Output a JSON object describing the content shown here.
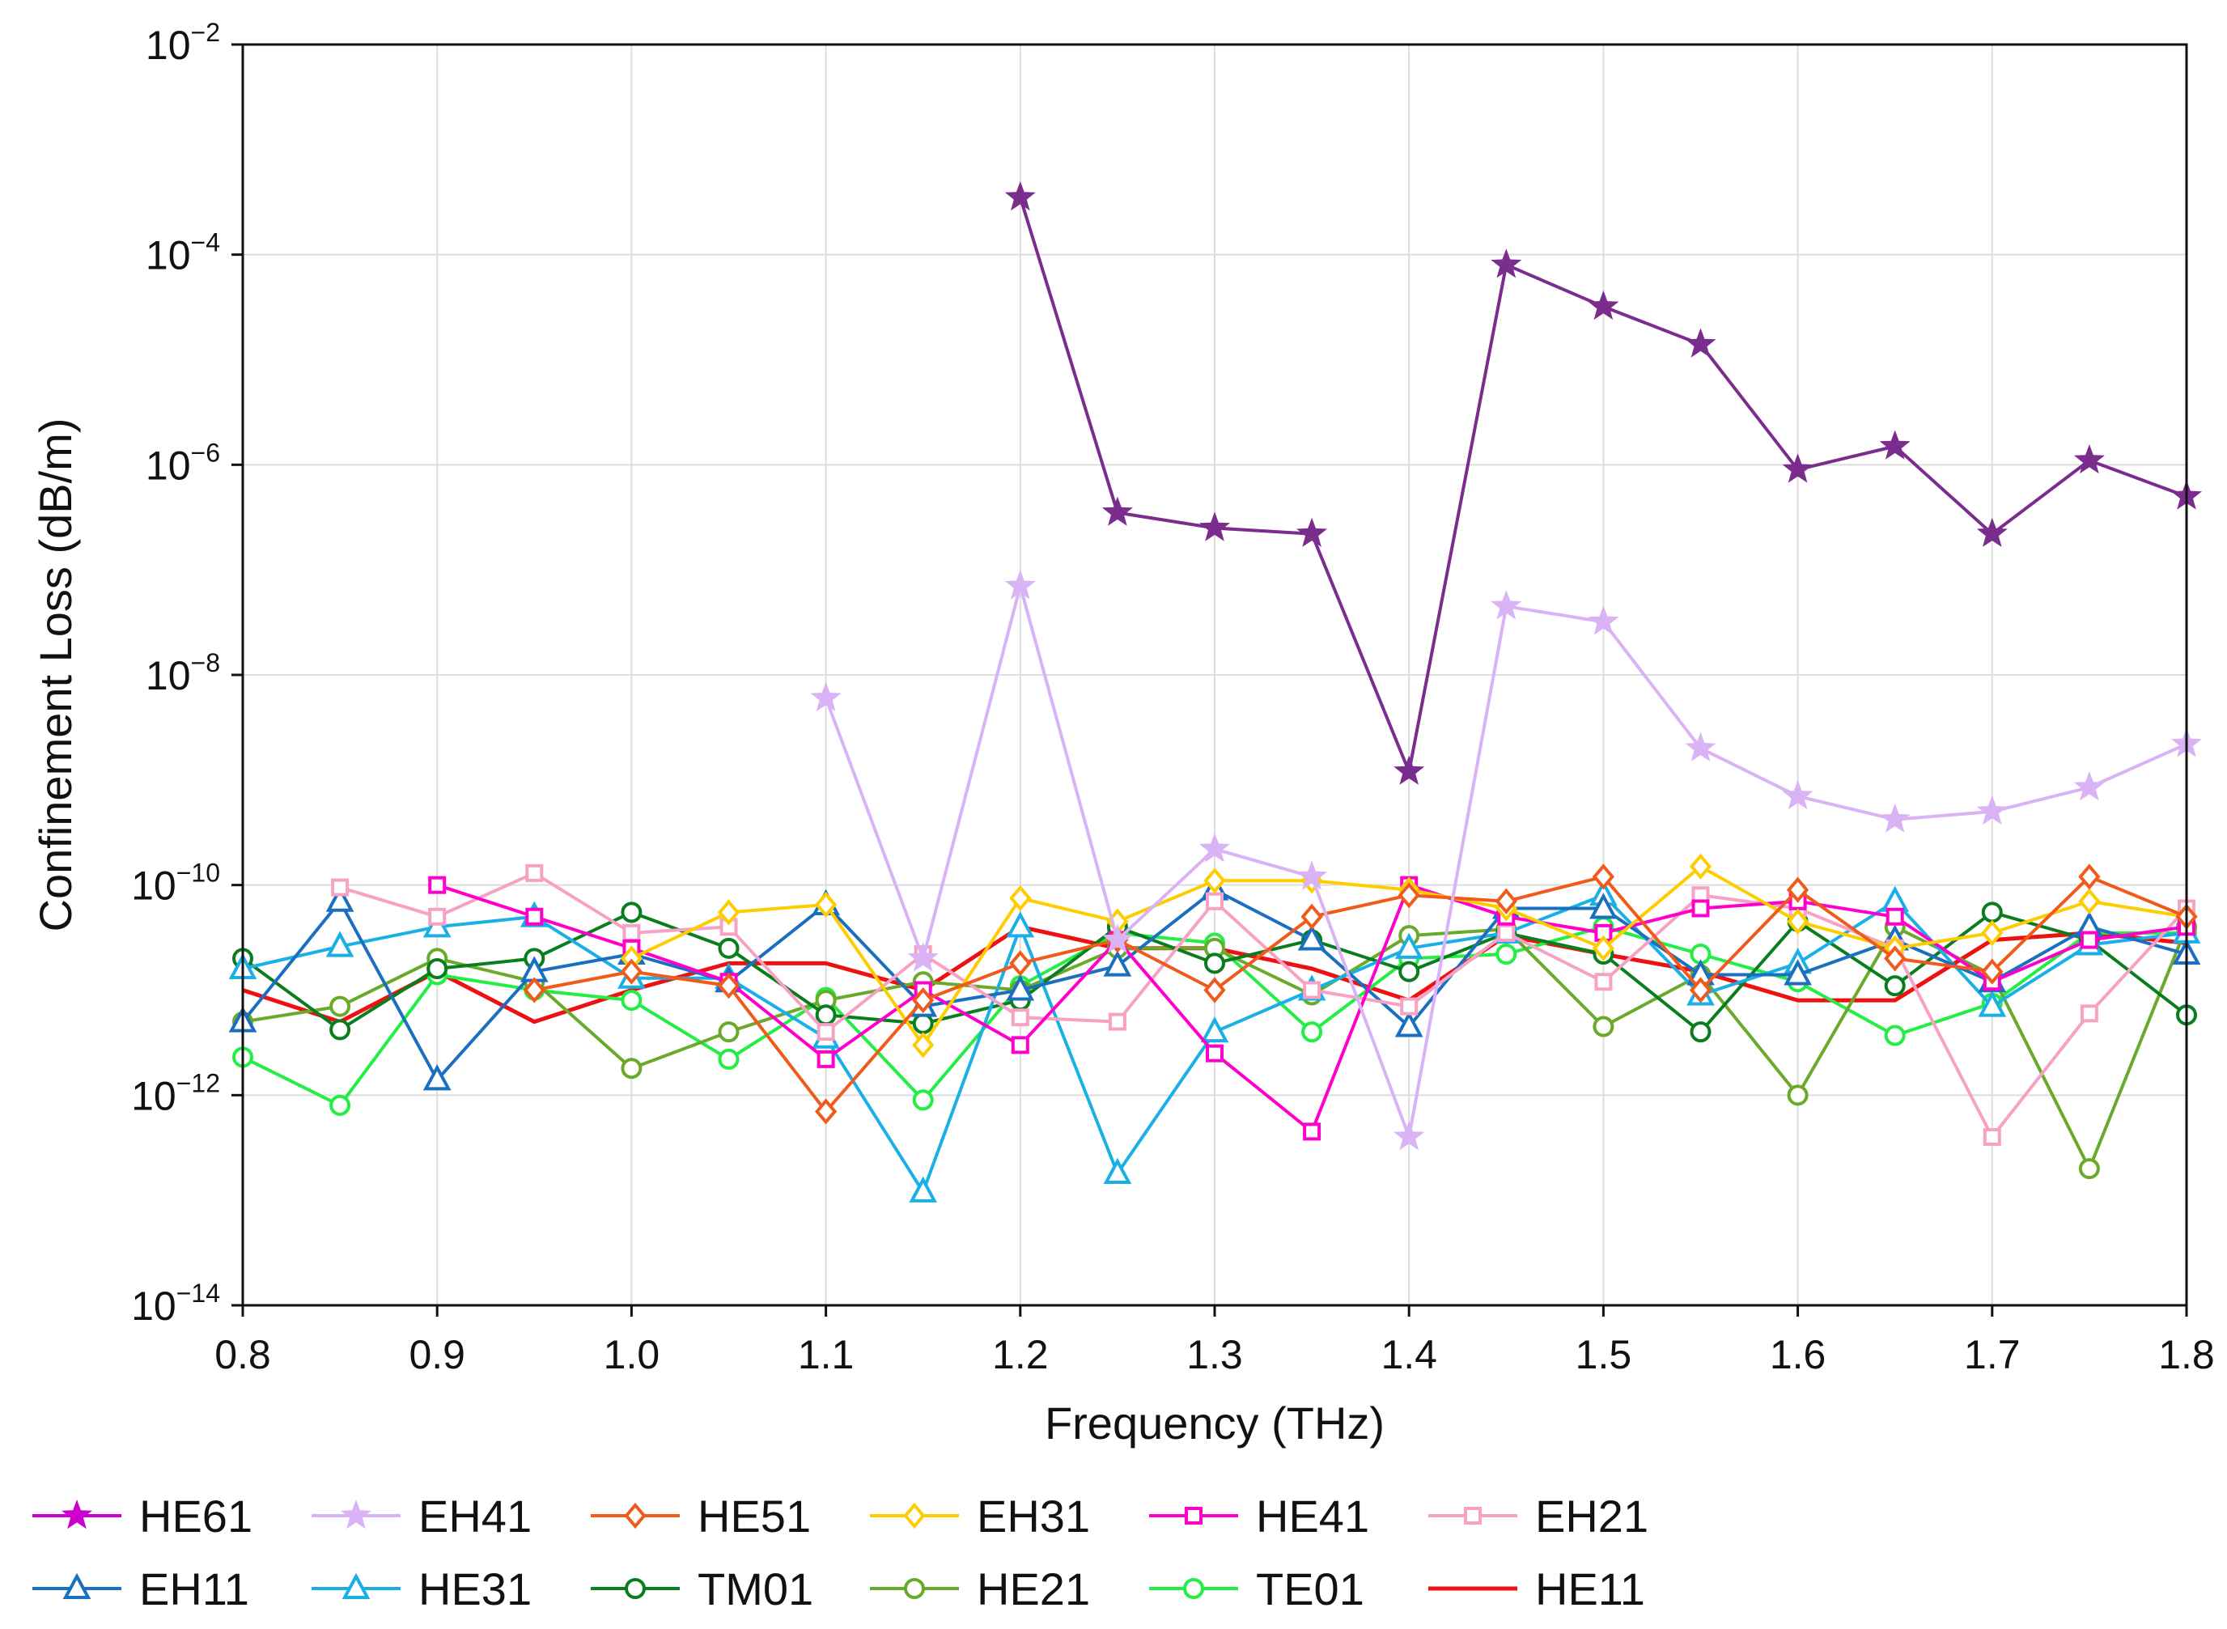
{
  "chart_data": {
    "type": "line",
    "title": "",
    "xlabel": "Frequency (THz)",
    "ylabel": "Confinement Loss (dB/m)",
    "xlim": [
      0.8,
      1.8
    ],
    "ylim": [
      1e-14,
      0.01
    ],
    "yscale": "log",
    "grid": true,
    "legend_position": "bottom",
    "x_ticks": [
      "0.8",
      "0.9",
      "1.0",
      "1.1",
      "1.2",
      "1.3",
      "1.4",
      "1.5",
      "1.6",
      "1.7",
      "1.8"
    ],
    "y_ticks": [
      {
        "base": "10",
        "exp": "−14"
      },
      {
        "base": "10",
        "exp": "−12"
      },
      {
        "base": "10",
        "exp": "−10"
      },
      {
        "base": "10",
        "exp": "−8"
      },
      {
        "base": "10",
        "exp": "−6"
      },
      {
        "base": "10",
        "exp": "−4"
      },
      {
        "base": "10",
        "exp": "−2"
      }
    ],
    "series": [
      {
        "name": "HE61",
        "color": "#7b2d8e",
        "legend_color": "#cc00cc",
        "marker": "star",
        "x": [
          1.2,
          1.25,
          1.3,
          1.35,
          1.4,
          1.45,
          1.5,
          1.55,
          1.6,
          1.65,
          1.7,
          1.75,
          1.8
        ],
        "y": [
          0.00035,
          3.5e-07,
          2.5e-07,
          2.2e-07,
          1.2e-09,
          8e-05,
          3.2e-05,
          1.4e-05,
          9e-07,
          1.5e-06,
          2.2e-07,
          1.1e-06,
          5e-07
        ]
      },
      {
        "name": "EH41",
        "color": "#d9b3f5",
        "marker": "star",
        "x": [
          1.1,
          1.15,
          1.2,
          1.25,
          1.3,
          1.35,
          1.4,
          1.45,
          1.5,
          1.55,
          1.6,
          1.65,
          1.7,
          1.75,
          1.8
        ],
        "y": [
          6e-09,
          2e-11,
          7e-08,
          3e-11,
          2.2e-10,
          1.2e-10,
          4e-13,
          4.5e-08,
          3.2e-08,
          2e-09,
          7e-10,
          4.2e-10,
          5e-10,
          8.5e-10,
          2.2e-09
        ]
      },
      {
        "name": "HE51",
        "color": "#f05a1a",
        "marker": "diamond",
        "x": [
          0.95,
          1.0,
          1.05,
          1.1,
          1.15,
          1.2,
          1.25,
          1.3,
          1.35,
          1.4,
          1.45,
          1.5,
          1.55,
          1.6,
          1.65,
          1.7,
          1.75,
          1.8
        ],
        "y": [
          1e-11,
          1.5e-11,
          1.1e-11,
          7e-13,
          8e-12,
          1.8e-11,
          3e-11,
          1e-11,
          5e-11,
          8e-11,
          7e-11,
          1.2e-10,
          1e-11,
          9e-11,
          2e-11,
          1.5e-11,
          1.2e-10,
          5e-11
        ]
      },
      {
        "name": "EH31",
        "color": "#ffcc00",
        "marker": "diamond",
        "x": [
          1.0,
          1.05,
          1.1,
          1.15,
          1.2,
          1.25,
          1.3,
          1.35,
          1.4,
          1.45,
          1.5,
          1.55,
          1.6,
          1.65,
          1.7,
          1.75,
          1.8
        ],
        "y": [
          2e-11,
          5.5e-11,
          6.5e-11,
          3e-12,
          7.5e-11,
          4.5e-11,
          1.1e-10,
          1.1e-10,
          9e-11,
          6e-11,
          2.5e-11,
          1.5e-10,
          4.5e-11,
          2.5e-11,
          3.5e-11,
          7e-11,
          5e-11
        ]
      },
      {
        "name": "HE41",
        "color": "#ff00cc",
        "marker": "square",
        "x": [
          0.9,
          0.95,
          1.0,
          1.05,
          1.1,
          1.15,
          1.2,
          1.25,
          1.3,
          1.35,
          1.4,
          1.45,
          1.5,
          1.55,
          1.6,
          1.65,
          1.7,
          1.75,
          1.8
        ],
        "y": [
          1e-10,
          5e-11,
          2.5e-11,
          1.2e-11,
          2.2e-12,
          1e-11,
          3e-12,
          3e-11,
          2.5e-12,
          4.5e-13,
          1e-10,
          5e-11,
          3.5e-11,
          6e-11,
          7e-11,
          5e-11,
          1.2e-11,
          3e-11,
          4e-11
        ]
      },
      {
        "name": "EH21",
        "color": "#f7a1c4",
        "marker": "square",
        "x": [
          0.85,
          0.9,
          0.95,
          1.0,
          1.05,
          1.1,
          1.15,
          1.2,
          1.25,
          1.3,
          1.35,
          1.4,
          1.45,
          1.5,
          1.55,
          1.6,
          1.65,
          1.7,
          1.75,
          1.8
        ],
        "y": [
          9.5e-11,
          5e-11,
          1.3e-10,
          3.5e-11,
          4e-11,
          4e-12,
          2.2e-11,
          5.5e-12,
          5e-12,
          7e-11,
          1e-11,
          7e-12,
          3.5e-11,
          1.2e-11,
          8e-11,
          6e-11,
          2.5e-11,
          4e-13,
          6e-12,
          6e-11
        ]
      },
      {
        "name": "EH11",
        "color": "#1a6fbf",
        "marker": "triangle",
        "x": [
          0.8,
          0.85,
          0.9,
          0.95,
          1.0,
          1.05,
          1.1,
          1.15,
          1.2,
          1.25,
          1.3,
          1.35,
          1.4,
          1.45,
          1.5,
          1.55,
          1.6,
          1.65,
          1.7,
          1.75,
          1.8
        ],
        "y": [
          5e-12,
          7e-11,
          1.4e-12,
          1.5e-11,
          2.2e-11,
          1.2e-11,
          6.5e-11,
          7e-12,
          1e-11,
          1.7e-11,
          9e-11,
          3e-11,
          4.5e-12,
          6e-11,
          6e-11,
          1.4e-11,
          1.4e-11,
          3e-11,
          1.2e-11,
          4e-11,
          2.2e-11
        ]
      },
      {
        "name": "HE31",
        "color": "#1ab0e6",
        "marker": "triangle",
        "x": [
          0.8,
          0.85,
          0.9,
          0.95,
          1.0,
          1.05,
          1.1,
          1.15,
          1.2,
          1.25,
          1.3,
          1.35,
          1.4,
          1.45,
          1.5,
          1.55,
          1.6,
          1.65,
          1.7,
          1.75,
          1.8
        ],
        "y": [
          1.6e-11,
          2.6e-11,
          4e-11,
          5e-11,
          1.3e-11,
          1.3e-11,
          3.5e-12,
          1.2e-13,
          4e-11,
          1.8e-13,
          4e-12,
          1e-11,
          2.5e-11,
          3.5e-11,
          8e-11,
          9e-12,
          1.8e-11,
          7e-11,
          7e-12,
          2.7e-11,
          3.5e-11
        ]
      },
      {
        "name": "TM01",
        "color": "#0a7d1e",
        "marker": "circle",
        "x": [
          0.8,
          0.85,
          0.9,
          0.95,
          1.0,
          1.05,
          1.1,
          1.15,
          1.2,
          1.25,
          1.3,
          1.35,
          1.4,
          1.45,
          1.5,
          1.55,
          1.6,
          1.65,
          1.7,
          1.75,
          1.8
        ],
        "y": [
          2e-11,
          4.2e-12,
          1.6e-11,
          2e-11,
          5.5e-11,
          2.5e-11,
          5.8e-12,
          4.8e-12,
          8e-12,
          4e-11,
          1.8e-11,
          3e-11,
          1.5e-11,
          3.5e-11,
          2.2e-11,
          4e-12,
          4.5e-11,
          1.1e-11,
          5.5e-11,
          3e-11,
          5.8e-12
        ]
      },
      {
        "name": "HE21",
        "color": "#6aaa2a",
        "marker": "circle",
        "x": [
          0.8,
          0.85,
          0.9,
          0.95,
          1.0,
          1.05,
          1.1,
          1.15,
          1.2,
          1.25,
          1.3,
          1.35,
          1.4,
          1.45,
          1.5,
          1.55,
          1.6,
          1.65,
          1.7,
          1.75,
          1.8
        ],
        "y": [
          5e-12,
          7e-12,
          2e-11,
          1.2e-11,
          1.8e-12,
          4e-12,
          8e-12,
          1.2e-11,
          1e-11,
          2.5e-11,
          2.5e-11,
          9e-12,
          3.3e-11,
          3.8e-11,
          4.5e-12,
          1.4e-11,
          1e-12,
          4e-11,
          1.4e-11,
          2e-13,
          4e-11
        ]
      },
      {
        "name": "TE01",
        "color": "#22ee44",
        "marker": "circle",
        "x": [
          0.8,
          0.85,
          0.9,
          0.95,
          1.0,
          1.05,
          1.1,
          1.15,
          1.2,
          1.25,
          1.3,
          1.35,
          1.4,
          1.45,
          1.5,
          1.55,
          1.6,
          1.65,
          1.7,
          1.75,
          1.8
        ],
        "y": [
          2.3e-12,
          8e-13,
          1.4e-11,
          1e-11,
          8e-12,
          2.2e-12,
          8.5e-12,
          9e-13,
          1.1e-11,
          3.5e-11,
          2.8e-11,
          4e-12,
          2e-11,
          2.2e-11,
          4e-11,
          2.2e-11,
          1.2e-11,
          3.7e-12,
          7.5e-12,
          3.5e-11,
          3.5e-11
        ]
      },
      {
        "name": "HE11",
        "color": "#ee1111",
        "marker": "none",
        "x": [
          0.8,
          0.85,
          0.9,
          0.95,
          1.0,
          1.05,
          1.1,
          1.15,
          1.2,
          1.25,
          1.3,
          1.35,
          1.4,
          1.45,
          1.5,
          1.55,
          1.6,
          1.65,
          1.7,
          1.75,
          1.8
        ],
        "y": [
          1e-11,
          5e-12,
          1.5e-11,
          5e-12,
          1e-11,
          1.8e-11,
          1.8e-11,
          1e-11,
          4e-11,
          2.5e-11,
          2.5e-11,
          1.6e-11,
          8e-12,
          3.3e-11,
          2.2e-11,
          1.5e-11,
          8e-12,
          8e-12,
          3e-11,
          3.5e-11,
          2.8e-11
        ]
      }
    ]
  }
}
